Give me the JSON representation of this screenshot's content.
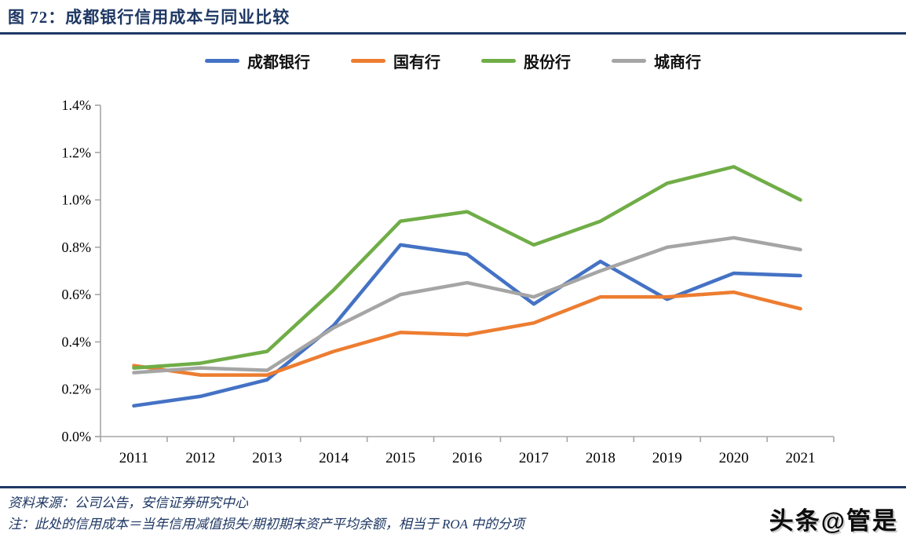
{
  "header": {
    "title": "图 72：成都银行信用成本与同业比较"
  },
  "chart_data": {
    "type": "line",
    "title": "成都银行信用成本与同业比较",
    "categories": [
      "2011",
      "2012",
      "2013",
      "2014",
      "2015",
      "2016",
      "2017",
      "2018",
      "2019",
      "2020",
      "2021"
    ],
    "series": [
      {
        "name": "成都银行",
        "color": "#4472C4",
        "values": [
          0.13,
          0.17,
          0.24,
          0.47,
          0.81,
          0.77,
          0.56,
          0.74,
          0.58,
          0.69,
          0.68
        ]
      },
      {
        "name": "国有行",
        "color": "#ED7D31",
        "values": [
          0.3,
          0.26,
          0.26,
          0.36,
          0.44,
          0.43,
          0.48,
          0.59,
          0.59,
          0.61,
          0.54
        ]
      },
      {
        "name": "股份行",
        "color": "#70AD47",
        "values": [
          0.29,
          0.31,
          0.36,
          0.62,
          0.91,
          0.95,
          0.81,
          0.91,
          1.07,
          1.14,
          1.0
        ]
      },
      {
        "name": "城商行",
        "color": "#A5A5A5",
        "values": [
          0.27,
          0.29,
          0.28,
          0.46,
          0.6,
          0.65,
          0.59,
          0.7,
          0.8,
          0.84,
          0.79
        ]
      }
    ],
    "ylim": [
      0,
      1.4
    ],
    "y_tick_labels": [
      "0.0%",
      "0.2%",
      "0.4%",
      "0.6%",
      "0.8%",
      "1.0%",
      "1.2%",
      "1.4%"
    ],
    "xlabel": "",
    "ylabel": "",
    "legend_position": "top",
    "grid": false
  },
  "style": {
    "accent_navy": "#1f3864",
    "axis_gray": "#a6a6a6",
    "tick_label_color": "#000000"
  },
  "source_note": "资料来源：公司公告，安信证券研究中心",
  "footnote": "注：此处的信用成本＝当年信用减值损失/期初期末资产平均余额，相当于 ROA 中的分项",
  "watermark": "头条@管是"
}
